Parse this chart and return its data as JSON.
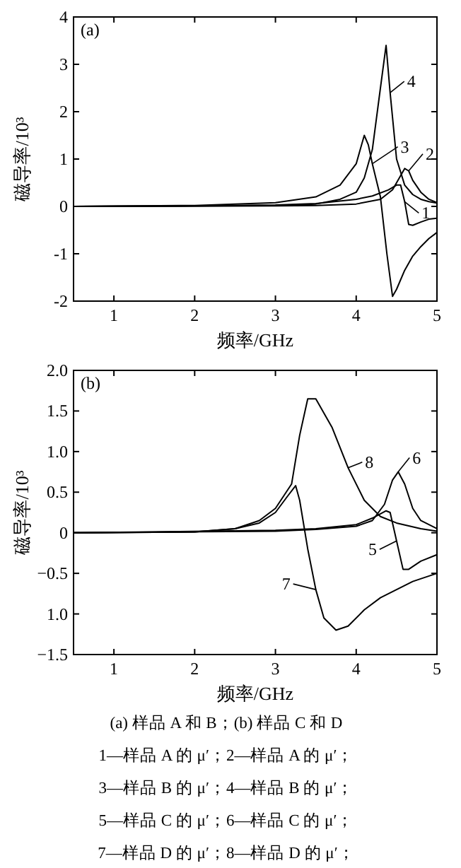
{
  "chart_data": [
    {
      "type": "line",
      "xlabel": "频率/GHz",
      "ylabel": "磁导率/10³",
      "xlim": [
        0.5,
        5
      ],
      "ylim": [
        -2,
        4
      ],
      "xticks": [
        1,
        2,
        3,
        4,
        5
      ],
      "yticks": [
        -2,
        -1,
        0,
        1,
        2,
        3,
        4
      ],
      "legend": "top right",
      "line_style": "solid",
      "annotations": [
        "(a)"
      ],
      "series": [
        {
          "name": "1",
          "color": "#000000",
          "x": [
            0.5,
            2,
            3,
            3.5,
            4,
            4.2,
            4.4,
            4.5,
            4.55,
            4.6,
            4.65,
            4.7,
            4.8,
            4.9,
            5
          ],
          "values": [
            0,
            0.01,
            0.03,
            0.06,
            0.15,
            0.22,
            0.35,
            0.45,
            0.45,
            0.1,
            -0.38,
            -0.4,
            -0.33,
            -0.27,
            -0.25
          ]
        },
        {
          "name": "2",
          "color": "#000000",
          "x": [
            0.5,
            3,
            3.5,
            4,
            4.3,
            4.45,
            4.55,
            4.6,
            4.65,
            4.7,
            4.8,
            4.9,
            5
          ],
          "values": [
            0,
            0.01,
            0.02,
            0.05,
            0.15,
            0.35,
            0.65,
            0.8,
            0.75,
            0.55,
            0.3,
            0.15,
            0.08
          ]
        },
        {
          "name": "3",
          "color": "#000000",
          "x": [
            0.5,
            2,
            3,
            3.5,
            3.8,
            4,
            4.05,
            4.1,
            4.15,
            4.2,
            4.3,
            4.38,
            4.45,
            4.5,
            4.6,
            4.7,
            4.8,
            4.9,
            5
          ],
          "values": [
            0,
            0.02,
            0.08,
            0.2,
            0.45,
            0.9,
            1.2,
            1.5,
            1.3,
            0.9,
            0.2,
            -1,
            -1.9,
            -1.75,
            -1.35,
            -1.05,
            -0.85,
            -0.68,
            -0.55
          ]
        },
        {
          "name": "4",
          "color": "#000000",
          "x": [
            0.5,
            3,
            3.5,
            3.8,
            4,
            4.1,
            4.2,
            4.3,
            4.37,
            4.42,
            4.5,
            4.6,
            4.7,
            4.8,
            4.9,
            5
          ],
          "values": [
            0,
            0.02,
            0.05,
            0.15,
            0.3,
            0.6,
            1.2,
            2.5,
            3.4,
            2.4,
            1,
            0.45,
            0.25,
            0.15,
            0.1,
            0.07
          ]
        }
      ]
    },
    {
      "type": "line",
      "xlabel": "频率/GHz",
      "ylabel": "磁导率/10³",
      "xlim": [
        0.5,
        5
      ],
      "ylim": [
        -1.5,
        2
      ],
      "xticks": [
        1,
        2,
        3,
        4,
        5
      ],
      "yticks": [
        {
          "value": -1.5,
          "label": "−1.5"
        },
        {
          "value": -1,
          "label": "1.0"
        },
        {
          "value": -0.5,
          "label": "−0.5"
        },
        {
          "value": 0,
          "label": "0"
        },
        {
          "value": 0.5,
          "label": "0.5"
        },
        {
          "value": 1,
          "label": "1.0"
        },
        {
          "value": 1.5,
          "label": "1.5"
        },
        {
          "value": 2,
          "label": "2.0"
        }
      ],
      "legend": "right",
      "line_style": "solid",
      "annotations": [
        "(b)",
        "(a)  样品 A 和 B；(b)  样品 C 和 D",
        "1—样品 A 的 μ′；2—样品 A 的 μ′；",
        "3—样品 B 的 μ′；4—样品 B 的 μ′；",
        "5—样品 C 的 μ′；6—样品 C 的 μ′；",
        "7—样品 D 的 μ′；8—样品 D 的 μ′；"
      ],
      "series": [
        {
          "name": "5",
          "color": "#000000",
          "x": [
            0.5,
            3,
            3.5,
            4,
            4.2,
            4.37,
            4.42,
            4.5,
            4.58,
            4.65,
            4.8,
            5
          ],
          "values": [
            0,
            0.03,
            0.05,
            0.1,
            0.18,
            0.27,
            0.25,
            -0.1,
            -0.45,
            -0.45,
            -0.35,
            -0.27
          ]
        },
        {
          "name": "6",
          "color": "#000000",
          "x": [
            0.5,
            3,
            3.5,
            4,
            4.2,
            4.35,
            4.45,
            4.52,
            4.6,
            4.7,
            4.8,
            5
          ],
          "values": [
            0,
            0.02,
            0.04,
            0.08,
            0.15,
            0.35,
            0.65,
            0.75,
            0.6,
            0.3,
            0.15,
            0.05
          ]
        },
        {
          "name": "7",
          "color": "#000000",
          "x": [
            0.5,
            2,
            2.5,
            2.8,
            3,
            3.15,
            3.25,
            3.3,
            3.4,
            3.5,
            3.6,
            3.75,
            3.9,
            4.1,
            4.3,
            4.5,
            4.7,
            5
          ],
          "values": [
            0,
            0.01,
            0.05,
            0.12,
            0.25,
            0.45,
            0.58,
            0.4,
            -0.2,
            -0.7,
            -1.05,
            -1.2,
            -1.15,
            -0.95,
            -0.8,
            -0.7,
            -0.6,
            -0.5
          ]
        },
        {
          "name": "8",
          "color": "#000000",
          "x": [
            0.5,
            2,
            2.5,
            2.8,
            3,
            3.2,
            3.3,
            3.4,
            3.5,
            3.7,
            3.9,
            4.1,
            4.3,
            4.5,
            4.8,
            5
          ],
          "values": [
            0,
            0.01,
            0.05,
            0.15,
            0.3,
            0.6,
            1.2,
            1.65,
            1.65,
            1.3,
            0.8,
            0.4,
            0.2,
            0.12,
            0.05,
            0.02
          ]
        }
      ]
    }
  ]
}
